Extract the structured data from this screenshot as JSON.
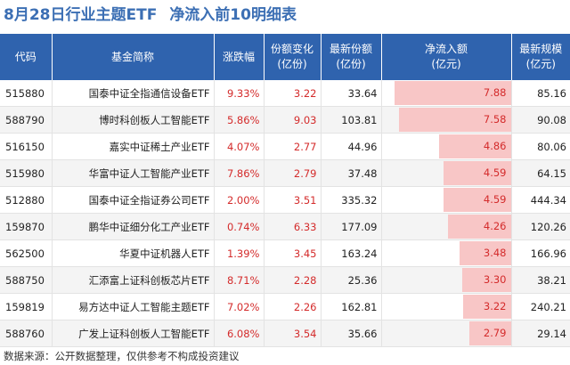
{
  "header": {
    "title_part1": "8月28日行业主题ETF",
    "title_part2": "净流入前10明细表"
  },
  "table": {
    "columns": [
      "代码",
      "基金简称",
      "涨跌幅",
      "份额变化\n(亿份)",
      "最新份额\n(亿份)",
      "净流入额\n(亿元)",
      "最新规模\n(亿元)"
    ],
    "rows": [
      {
        "code": "515880",
        "name": "国泰中证全指通信设备ETF",
        "change": "9.33%",
        "share_change": "3.22",
        "shares": "33.64",
        "inflow": "7.88",
        "scale": "85.16"
      },
      {
        "code": "588790",
        "name": "博时科创板人工智能ETF",
        "change": "5.86%",
        "share_change": "9.03",
        "shares": "103.81",
        "inflow": "7.58",
        "scale": "90.08"
      },
      {
        "code": "516150",
        "name": "嘉实中证稀土产业ETF",
        "change": "4.07%",
        "share_change": "2.77",
        "shares": "44.96",
        "inflow": "4.86",
        "scale": "80.06"
      },
      {
        "code": "515980",
        "name": "华富中证人工智能产业ETF",
        "change": "7.86%",
        "share_change": "2.79",
        "shares": "37.48",
        "inflow": "4.59",
        "scale": "64.15"
      },
      {
        "code": "512880",
        "name": "国泰中证全指证券公司ETF",
        "change": "2.00%",
        "share_change": "3.51",
        "shares": "335.32",
        "inflow": "4.59",
        "scale": "444.34"
      },
      {
        "code": "159870",
        "name": "鹏华中证细分化工产业ETF",
        "change": "0.74%",
        "share_change": "6.33",
        "shares": "177.09",
        "inflow": "4.26",
        "scale": "120.26"
      },
      {
        "code": "562500",
        "name": "华夏中证机器人ETF",
        "change": "1.39%",
        "share_change": "3.45",
        "shares": "163.24",
        "inflow": "3.48",
        "scale": "166.96"
      },
      {
        "code": "588750",
        "name": "汇添富上证科创板芯片ETF",
        "change": "8.71%",
        "share_change": "2.28",
        "shares": "25.36",
        "inflow": "3.30",
        "scale": "38.21"
      },
      {
        "code": "159819",
        "name": "易方达中证人工智能主题ETF",
        "change": "7.02%",
        "share_change": "2.26",
        "shares": "162.81",
        "inflow": "3.22",
        "scale": "240.21"
      },
      {
        "code": "588760",
        "name": "广发上证科创板人工智能ETF",
        "change": "6.08%",
        "share_change": "3.54",
        "shares": "35.66",
        "inflow": "2.79",
        "scale": "29.14"
      }
    ]
  },
  "footer": {
    "source": "数据来源：公开数据整理，仅供参考不构成投资建议"
  },
  "colors": {
    "header_bg": "#2f63ae",
    "title": "#3c6fb4",
    "positive": "#d42b2b",
    "bar": "#f8c6c6"
  }
}
